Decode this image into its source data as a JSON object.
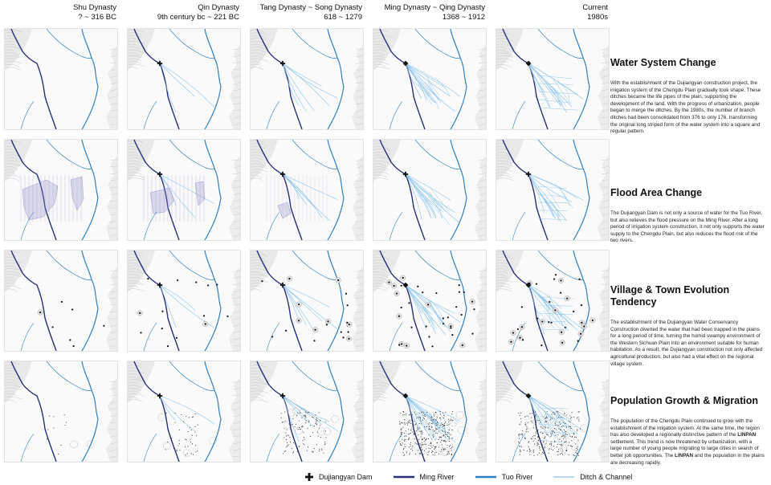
{
  "columns": [
    {
      "name": "Shu Dynasty",
      "period": "? ~ 316 BC"
    },
    {
      "name": "Qin Dynasty",
      "period": "9th century bc ~ 221 BC"
    },
    {
      "name": "Tang Dynasty ~ Song Dynasty",
      "period": "618 ~ 1279"
    },
    {
      "name": "Ming Dynasty ~ Qing Dynasty",
      "period": "1368 ~ 1912"
    },
    {
      "name": "Current",
      "period": "1980s"
    }
  ],
  "sections": [
    {
      "title": "Water System Change",
      "text": "With the establishment of the Dujiangyan construction project, the irrigation system of the Chengdu Plain gradually took shape. These ditches became the life pipes of the plain, supporting the development of the land. With the progress of urbanization, people began to merge the ditches. By the 1980s, the number of branch ditches had been consolidated from 376 to only 176, transforming the original long striped form of the water system into a square and regular pattern."
    },
    {
      "title": "Flood Area Change",
      "text": "The Dujiangyan Dam is not only a source of water for the Tuo River, but also relieves the flood pressure on the Ming River. After a long period of irrigation system construction, it not only supports the water supply to the Chengdu Plain, but also reduces the flood risk of the two rivers."
    },
    {
      "title": "Village & Town Evolution Tendency",
      "text": "The establishment of the Dujiangyan Water Conservancy Construction diverted the water that had been trapped in the plains for a long period of time, turning the humid swampy environment of the Western Sichuan Plain into an environment suitable for human habitation. As a result, the Dujiangyan construction not only affected agricultural production, but also had a vital effect on the regional village system."
    },
    {
      "title": "Population Growth & Migration",
      "text_a": "The population of the Chengdu Plain continued to grow with the establishment of the irrigation system. At the same time, the region has also developed a regionally distinctive pattern of the ",
      "bold_a": "LINPAN",
      "text_b": " settlement. This trend is now threatened by urbanization, with a large number of young people migrating to large cities in search of better job opportunities. The ",
      "bold_b": "LINPAN",
      "text_c": " and the population in the plains are decreasing rapidly."
    }
  ],
  "legend": [
    {
      "label": "Dujiangyan Dam",
      "icon": "cross-icon"
    },
    {
      "label": "Ming River",
      "color": "#2b2f78"
    },
    {
      "label": "Tuo River",
      "color": "#2f7fc0"
    },
    {
      "label": "Ditch & Channel",
      "color": "#8cc4ea"
    }
  ],
  "colors": {
    "ming_river": "#2b2f78",
    "tuo_river": "#2f7fc0",
    "ditch": "#8cc4ea",
    "flood": "#8a86c4",
    "mountain": "#c8c8c8"
  }
}
